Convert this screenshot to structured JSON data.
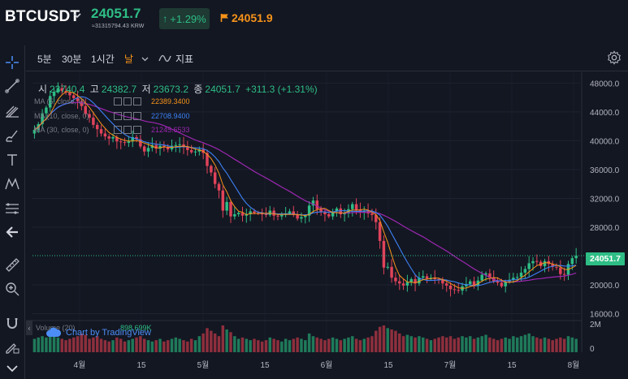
{
  "header": {
    "symbol": "BTCUSDT",
    "last_price": "24051.7",
    "krw_equivalent": "≈31315794.43 KRW",
    "change_pct": "+1.29%",
    "flag_price": "24051.9"
  },
  "timeframes": {
    "items": [
      "5분",
      "30분",
      "1시간",
      "날"
    ],
    "active": "날",
    "indicator_label": "지표"
  },
  "ohlc": {
    "open_label": "시",
    "open": "23740.4",
    "high_label": "고",
    "high": "24382.7",
    "low_label": "저",
    "low": "23673.2",
    "close_label": "종",
    "close": "24051.7",
    "change": "+311.3 (+1.31%)"
  },
  "ma_lines": [
    {
      "label": "MA (5, close, 0)",
      "value": "22389.3400",
      "color": "#f7931a"
    },
    {
      "label": "MA (10, close, 0)",
      "value": "22708.9400",
      "color": "#3c82f6"
    },
    {
      "label": "MA (30, close, 0)",
      "value": "21245.6533",
      "color": "#9c27b0"
    }
  ],
  "volume": {
    "label": "Volume (20)",
    "value": "898.699K"
  },
  "credit": "Chart by TradingView",
  "current_price_tag": "24051.7",
  "colors": {
    "up": "#2ebd85",
    "down": "#e0435a",
    "ma5": "#f7931a",
    "ma10": "#3c82f6",
    "ma30": "#9c27b0"
  },
  "chart_data": {
    "type": "candlestick",
    "x_tick_labels": [
      "4월",
      "15",
      "5월",
      "15",
      "6월",
      "15",
      "7월",
      "15",
      "8월"
    ],
    "y_tick_labels": [
      "48000.0",
      "44000.0",
      "40000.0",
      "36000.0",
      "32000.0",
      "28000.0",
      "20000.0",
      "16000.0"
    ],
    "ylim": [
      15500,
      49500
    ],
    "volume_tick_labels": [
      "2M",
      "0"
    ],
    "current_price": 24051.7,
    "closes": [
      41500,
      42300,
      43800,
      44600,
      46200,
      46800,
      47300,
      46900,
      46700,
      46300,
      45900,
      45500,
      44800,
      43700,
      43200,
      42200,
      41600,
      41000,
      40600,
      40300,
      40500,
      39900,
      39800,
      39700,
      39900,
      40500,
      40200,
      39200,
      38500,
      39000,
      39400,
      38900,
      39300,
      39100,
      38800,
      39300,
      39400,
      39500,
      39100,
      38700,
      38400,
      38500,
      38800,
      38300,
      36500,
      35600,
      34000,
      33100,
      30300,
      31500,
      29500,
      29800,
      30000,
      29600,
      29800,
      30200,
      30000,
      29900,
      29800,
      29700,
      30300,
      29600,
      29500,
      29700,
      29900,
      30200,
      29700,
      29200,
      29400,
      29600,
      31000,
      31700,
      30500,
      30100,
      29800,
      29500,
      30200,
      30600,
      29800,
      29900,
      30500,
      31200,
      30400,
      30100,
      30300,
      29900,
      29700,
      28700,
      26100,
      22400,
      22500,
      21000,
      20500,
      20200,
      19900,
      20400,
      20800,
      20200,
      21000,
      21200,
      20900,
      21000,
      20800,
      20700,
      20200,
      19900,
      19400,
      19300,
      19200,
      19800,
      20100,
      20500,
      19900,
      20600,
      21400,
      21600,
      21000,
      20500,
      20300,
      19800,
      20400,
      20700,
      21000,
      21100,
      21700,
      22200,
      23000,
      23300,
      23200,
      22600,
      23300,
      22900,
      22500,
      22400,
      21500,
      21400,
      22900,
      23700,
      24051.7
    ],
    "volume_relative": [
      0.5,
      0.55,
      0.6,
      0.55,
      0.7,
      0.6,
      0.55,
      0.5,
      0.45,
      0.5,
      0.55,
      0.6,
      0.7,
      0.65,
      0.5,
      0.55,
      0.6,
      0.5,
      0.45,
      0.4,
      0.45,
      0.55,
      0.5,
      0.4,
      0.45,
      0.5,
      0.55,
      0.6,
      0.5,
      0.45,
      0.4,
      0.45,
      0.5,
      0.4,
      0.45,
      0.5,
      0.55,
      0.5,
      0.45,
      0.4,
      0.5,
      0.45,
      0.6,
      0.7,
      0.9,
      0.8,
      0.7,
      0.6,
      1.0,
      0.85,
      0.75,
      0.6,
      0.5,
      0.55,
      0.5,
      0.45,
      0.5,
      0.45,
      0.4,
      0.45,
      0.55,
      0.5,
      0.45,
      0.4,
      0.5,
      0.45,
      0.5,
      0.55,
      0.5,
      0.45,
      0.7,
      0.6,
      0.55,
      0.5,
      0.45,
      0.5,
      0.55,
      0.5,
      0.45,
      0.5,
      0.55,
      0.6,
      0.5,
      0.45,
      0.5,
      0.55,
      0.6,
      0.8,
      0.95,
      1.0,
      0.9,
      0.85,
      0.8,
      0.7,
      0.6,
      0.65,
      0.6,
      0.55,
      0.6,
      0.55,
      0.5,
      0.45,
      0.5,
      0.55,
      0.6,
      0.55,
      0.6,
      0.5,
      0.55,
      0.6,
      0.55,
      0.6,
      0.5,
      0.55,
      0.6,
      0.65,
      0.55,
      0.5,
      0.45,
      0.5,
      0.55,
      0.5,
      0.6,
      0.55,
      0.6,
      0.65,
      0.7,
      0.6,
      0.55,
      0.5,
      0.55,
      0.5,
      0.45,
      0.5,
      0.55,
      0.5,
      0.6,
      0.55,
      0.5
    ]
  }
}
